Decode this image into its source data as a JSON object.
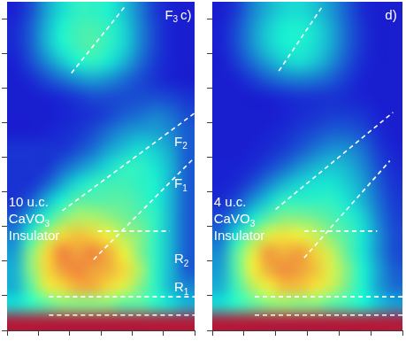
{
  "chart_data": [
    {
      "type": "heatmap",
      "x": [
        0.25,
        0.75,
        1.25,
        1.75,
        2.25,
        2.75,
        3.25,
        3.75,
        4.25,
        4.75,
        5.25,
        5.75
      ],
      "y": [
        0.25,
        0.75,
        1.25,
        1.75,
        2.25,
        2.75,
        3.25,
        3.75,
        4.25,
        4.75,
        5.25,
        5.75,
        6.25,
        6.75,
        7.25,
        7.75,
        8.25,
        8.75,
        9.25
      ],
      "z": [
        [
          0.95,
          0.95,
          0.95,
          0.95,
          0.95,
          0.95,
          0.95,
          0.95,
          0.95,
          0.95,
          0.95,
          0.95
        ],
        [
          0.35,
          0.4,
          0.45,
          0.5,
          0.5,
          0.5,
          0.5,
          0.45,
          0.45,
          0.4,
          0.35,
          0.3
        ],
        [
          0.3,
          0.45,
          0.6,
          0.65,
          0.7,
          0.7,
          0.65,
          0.6,
          0.5,
          0.4,
          0.3,
          0.25
        ],
        [
          0.3,
          0.5,
          0.65,
          0.72,
          0.75,
          0.72,
          0.7,
          0.65,
          0.55,
          0.4,
          0.3,
          0.2
        ],
        [
          0.28,
          0.5,
          0.65,
          0.75,
          0.72,
          0.75,
          0.7,
          0.62,
          0.5,
          0.4,
          0.3,
          0.2
        ],
        [
          0.25,
          0.4,
          0.55,
          0.65,
          0.68,
          0.66,
          0.62,
          0.55,
          0.5,
          0.4,
          0.3,
          0.2
        ],
        [
          0.2,
          0.3,
          0.4,
          0.5,
          0.55,
          0.55,
          0.52,
          0.48,
          0.45,
          0.4,
          0.3,
          0.2
        ],
        [
          0.15,
          0.2,
          0.3,
          0.38,
          0.45,
          0.45,
          0.45,
          0.45,
          0.42,
          0.38,
          0.3,
          0.2
        ],
        [
          0.15,
          0.15,
          0.2,
          0.28,
          0.35,
          0.4,
          0.42,
          0.42,
          0.4,
          0.38,
          0.3,
          0.2
        ],
        [
          0.15,
          0.15,
          0.15,
          0.2,
          0.25,
          0.3,
          0.35,
          0.4,
          0.4,
          0.36,
          0.3,
          0.2
        ],
        [
          0.15,
          0.15,
          0.15,
          0.15,
          0.18,
          0.22,
          0.28,
          0.32,
          0.35,
          0.33,
          0.28,
          0.2
        ],
        [
          0.12,
          0.12,
          0.13,
          0.14,
          0.15,
          0.18,
          0.22,
          0.26,
          0.28,
          0.28,
          0.25,
          0.2
        ],
        [
          0.12,
          0.12,
          0.12,
          0.13,
          0.14,
          0.15,
          0.17,
          0.2,
          0.22,
          0.24,
          0.22,
          0.18
        ],
        [
          0.12,
          0.12,
          0.13,
          0.14,
          0.16,
          0.18,
          0.18,
          0.18,
          0.18,
          0.18,
          0.17,
          0.15
        ],
        [
          0.12,
          0.14,
          0.18,
          0.22,
          0.26,
          0.28,
          0.26,
          0.22,
          0.18,
          0.15,
          0.13,
          0.12
        ],
        [
          0.13,
          0.18,
          0.25,
          0.32,
          0.38,
          0.4,
          0.36,
          0.3,
          0.22,
          0.16,
          0.13,
          0.12
        ],
        [
          0.14,
          0.2,
          0.3,
          0.38,
          0.42,
          0.44,
          0.4,
          0.34,
          0.25,
          0.17,
          0.13,
          0.12
        ],
        [
          0.14,
          0.2,
          0.3,
          0.38,
          0.42,
          0.43,
          0.4,
          0.34,
          0.25,
          0.17,
          0.13,
          0.12
        ],
        [
          0.13,
          0.18,
          0.28,
          0.35,
          0.4,
          0.4,
          0.38,
          0.32,
          0.24,
          0.16,
          0.13,
          0.12
        ]
      ],
      "zlim": [
        0,
        1
      ],
      "xlim": [
        0,
        6
      ],
      "xticks": [
        0,
        1,
        2,
        3,
        4,
        5,
        6
      ],
      "ylim": [
        0,
        9.5
      ],
      "yticks": [
        0,
        1,
        2,
        3,
        4,
        5,
        6,
        7,
        8,
        9
      ],
      "tick_labels": false,
      "series": [
        {
          "x": [
            2.06,
            3.77
          ],
          "y": [
            7.44,
            9.36
          ],
          "color": "#ffffff",
          "line_style": "dashed"
        },
        {
          "x": [
            1.77,
            6.0
          ],
          "y": [
            3.46,
            6.28
          ],
          "color": "#ffffff",
          "line_style": "dashed"
        },
        {
          "x": [
            2.77,
            6.0
          ],
          "y": [
            2.05,
            5.0
          ],
          "color": "#ffffff",
          "line_style": "dashed"
        },
        {
          "x": [
            2.9,
            5.2
          ],
          "y": [
            2.87,
            2.87
          ],
          "color": "#ffffff",
          "line_style": "dashed"
        },
        {
          "x": [
            1.34,
            6.0
          ],
          "y": [
            0.97,
            0.97
          ],
          "color": "#ffffff",
          "line_style": "dashed"
        },
        {
          "x": [
            1.34,
            6.0
          ],
          "y": [
            0.44,
            0.44
          ],
          "color": "#ffffff",
          "line_style": "dashed"
        }
      ],
      "annotations": [
        {
          "text": "F3",
          "x": 5.05,
          "y": 9.1
        },
        {
          "text": "c)",
          "x": 5.55,
          "y": 9.1
        },
        {
          "text": "F2",
          "x": 5.35,
          "y": 5.44
        },
        {
          "text": "F1",
          "x": 5.35,
          "y": 4.23
        },
        {
          "text": "R2",
          "x": 5.35,
          "y": 2.05
        },
        {
          "text": "R1",
          "x": 5.35,
          "y": 1.23
        },
        {
          "text": "10 u.c.",
          "x": 0.05,
          "y": 3.7
        },
        {
          "text": "CaVO3",
          "x": 0.05,
          "y": 3.2
        },
        {
          "text": "Insulator",
          "x": 0.05,
          "y": 2.72
        }
      ]
    },
    {
      "type": "heatmap",
      "x": [
        0.25,
        0.75,
        1.25,
        1.75,
        2.25,
        2.75,
        3.25,
        3.75,
        4.25,
        4.75,
        5.25,
        5.75
      ],
      "y": [
        0.25,
        0.75,
        1.25,
        1.75,
        2.25,
        2.75,
        3.25,
        3.75,
        4.25,
        4.75,
        5.25,
        5.75,
        6.25,
        6.75,
        7.25,
        7.75,
        8.25,
        8.75,
        9.25
      ],
      "z": [
        [
          0.95,
          0.95,
          0.95,
          0.95,
          0.95,
          0.95,
          0.95,
          0.95,
          0.95,
          0.95,
          0.95,
          0.95
        ],
        [
          0.35,
          0.4,
          0.45,
          0.5,
          0.52,
          0.5,
          0.5,
          0.45,
          0.42,
          0.38,
          0.32,
          0.28
        ],
        [
          0.3,
          0.42,
          0.55,
          0.62,
          0.68,
          0.68,
          0.64,
          0.58,
          0.48,
          0.38,
          0.28,
          0.22
        ],
        [
          0.28,
          0.45,
          0.62,
          0.7,
          0.74,
          0.72,
          0.68,
          0.6,
          0.5,
          0.38,
          0.28,
          0.2
        ],
        [
          0.26,
          0.45,
          0.6,
          0.72,
          0.7,
          0.72,
          0.66,
          0.58,
          0.46,
          0.36,
          0.26,
          0.18
        ],
        [
          0.22,
          0.36,
          0.5,
          0.6,
          0.64,
          0.62,
          0.58,
          0.5,
          0.44,
          0.36,
          0.26,
          0.18
        ],
        [
          0.18,
          0.26,
          0.36,
          0.45,
          0.5,
          0.5,
          0.48,
          0.44,
          0.4,
          0.34,
          0.24,
          0.17
        ],
        [
          0.14,
          0.18,
          0.26,
          0.33,
          0.4,
          0.4,
          0.4,
          0.4,
          0.36,
          0.3,
          0.22,
          0.16
        ],
        [
          0.13,
          0.14,
          0.18,
          0.24,
          0.3,
          0.34,
          0.36,
          0.36,
          0.33,
          0.28,
          0.2,
          0.15
        ],
        [
          0.13,
          0.13,
          0.14,
          0.17,
          0.21,
          0.26,
          0.3,
          0.32,
          0.3,
          0.25,
          0.18,
          0.14
        ],
        [
          0.12,
          0.12,
          0.13,
          0.14,
          0.16,
          0.19,
          0.23,
          0.26,
          0.26,
          0.22,
          0.16,
          0.13
        ],
        [
          0.12,
          0.12,
          0.12,
          0.13,
          0.14,
          0.16,
          0.18,
          0.2,
          0.2,
          0.18,
          0.14,
          0.12
        ],
        [
          0.12,
          0.12,
          0.12,
          0.12,
          0.13,
          0.14,
          0.15,
          0.16,
          0.16,
          0.15,
          0.13,
          0.12
        ],
        [
          0.12,
          0.12,
          0.12,
          0.13,
          0.14,
          0.15,
          0.15,
          0.15,
          0.14,
          0.13,
          0.12,
          0.12
        ],
        [
          0.12,
          0.13,
          0.16,
          0.2,
          0.23,
          0.24,
          0.23,
          0.2,
          0.16,
          0.13,
          0.12,
          0.12
        ],
        [
          0.12,
          0.16,
          0.22,
          0.28,
          0.33,
          0.35,
          0.32,
          0.26,
          0.19,
          0.14,
          0.12,
          0.12
        ],
        [
          0.13,
          0.18,
          0.26,
          0.33,
          0.37,
          0.38,
          0.35,
          0.29,
          0.21,
          0.15,
          0.12,
          0.12
        ],
        [
          0.13,
          0.18,
          0.26,
          0.33,
          0.37,
          0.38,
          0.35,
          0.29,
          0.21,
          0.15,
          0.12,
          0.12
        ],
        [
          0.12,
          0.16,
          0.24,
          0.3,
          0.34,
          0.35,
          0.32,
          0.27,
          0.2,
          0.14,
          0.12,
          0.12
        ]
      ],
      "zlim": [
        0,
        1
      ],
      "xlim": [
        0,
        6
      ],
      "xticks": [
        0,
        1,
        2,
        3,
        4,
        5,
        6
      ],
      "ylim": [
        0,
        9.5
      ],
      "yticks": [
        0,
        1,
        2,
        3,
        4,
        5,
        6,
        7,
        8,
        9
      ],
      "tick_labels": false,
      "series": [
        {
          "x": [
            2.1,
            3.5
          ],
          "y": [
            7.5,
            9.4
          ],
          "color": "#ffffff",
          "line_style": "dashed"
        },
        {
          "x": [
            2.0,
            5.7
          ],
          "y": [
            3.5,
            6.3
          ],
          "color": "#ffffff",
          "line_style": "dashed"
        },
        {
          "x": [
            2.9,
            5.6
          ],
          "y": [
            2.1,
            4.9
          ],
          "color": "#ffffff",
          "line_style": "dashed"
        },
        {
          "x": [
            2.9,
            5.2
          ],
          "y": [
            2.87,
            2.87
          ],
          "color": "#ffffff",
          "line_style": "dashed"
        },
        {
          "x": [
            1.34,
            6.0
          ],
          "y": [
            0.97,
            0.97
          ],
          "color": "#ffffff",
          "line_style": "dashed"
        },
        {
          "x": [
            1.34,
            6.0
          ],
          "y": [
            0.44,
            0.44
          ],
          "color": "#ffffff",
          "line_style": "dashed"
        }
      ],
      "annotations": [
        {
          "text": "d)",
          "x": 5.45,
          "y": 9.1
        },
        {
          "text": "4 u.c.",
          "x": 0.05,
          "y": 3.7
        },
        {
          "text": "CaVO3",
          "x": 0.05,
          "y": 3.2
        },
        {
          "text": "Insulator",
          "x": 0.05,
          "y": 2.72
        }
      ]
    }
  ]
}
